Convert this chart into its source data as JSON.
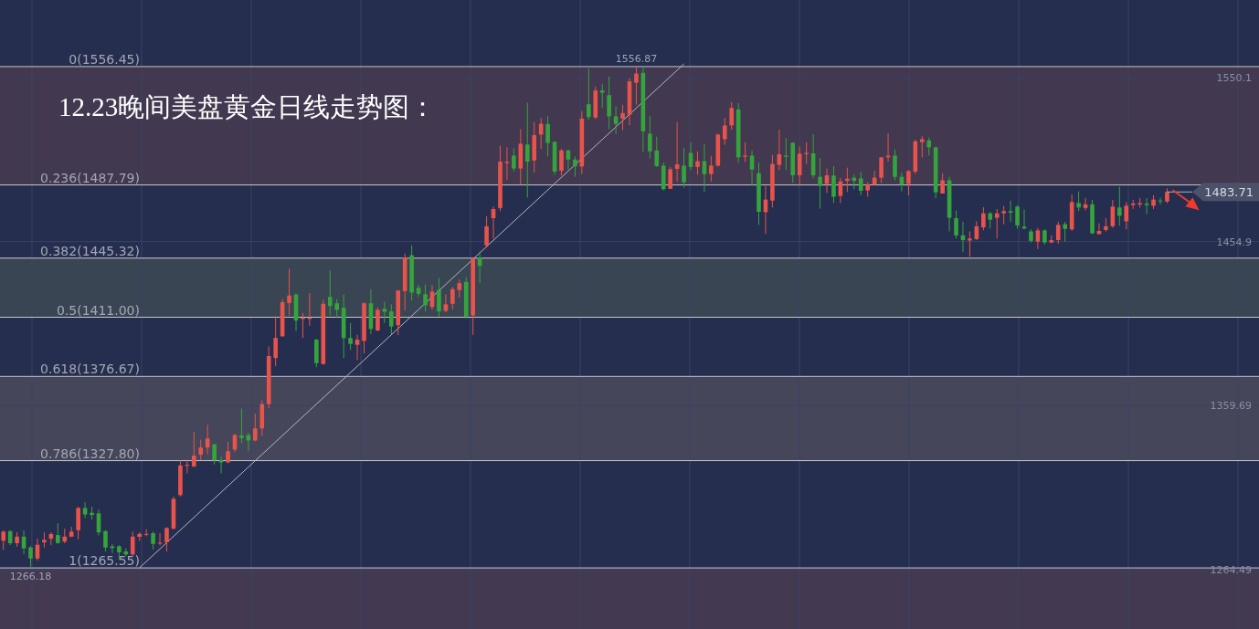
{
  "chart_data": {
    "type": "candlestick",
    "title": "12.23晚间美盘黄金日线走势图：",
    "categories": [
      null,
      null,
      null,
      null,
      null,
      null,
      null,
      null,
      null,
      null,
      null,
      null,
      null,
      null,
      null,
      null,
      null,
      null,
      null,
      null,
      null,
      null,
      null,
      null,
      null,
      null,
      null,
      null,
      null,
      null,
      null,
      null,
      null,
      null,
      null,
      null,
      null,
      null,
      null,
      null,
      null,
      null,
      null,
      null,
      null,
      null,
      null,
      null,
      null,
      null,
      null,
      null,
      null,
      null,
      null,
      null,
      null,
      null,
      null,
      null,
      null,
      null,
      null,
      null,
      null,
      null,
      null,
      null,
      null,
      null,
      null,
      null,
      null,
      null,
      null,
      null,
      null,
      null,
      null,
      null,
      null,
      null,
      null,
      null,
      null,
      null,
      null,
      null,
      null,
      null,
      null,
      null,
      null,
      null,
      null,
      null,
      null,
      null,
      null,
      null,
      null,
      null,
      null,
      null,
      null,
      null,
      null,
      null,
      null,
      null,
      null,
      null,
      null,
      null,
      null,
      null,
      null,
      null,
      null,
      null,
      null,
      null,
      null,
      null,
      null,
      null,
      null,
      null,
      null,
      null,
      null,
      null,
      null,
      null,
      null,
      null,
      null,
      null,
      null,
      null,
      null,
      null,
      null,
      null,
      null,
      null,
      null,
      null,
      null,
      null,
      null,
      null,
      null,
      null,
      null,
      null,
      null,
      null,
      null,
      null,
      null,
      null,
      null,
      null,
      null,
      null,
      null,
      null,
      null,
      null,
      null,
      null,
      null,
      null,
      null,
      null,
      null,
      null,
      null,
      null,
      null,
      null,
      null,
      null,
      null
    ],
    "ohlc": [
      [
        1281.3,
        1287.4,
        1276.0,
        1286.6
      ],
      [
        1286.9,
        1287.4,
        1278.8,
        1279.9
      ],
      [
        1279.9,
        1286.2,
        1277.8,
        1283.7
      ],
      [
        1283.7,
        1287.3,
        1273.5,
        1276.9
      ],
      [
        1277.4,
        1278.3,
        1266.18,
        1271.0
      ],
      [
        1271.0,
        1282.5,
        1269.8,
        1279.0
      ],
      [
        1280.4,
        1286.2,
        1277.4,
        1281.8
      ],
      [
        1282.5,
        1286.2,
        1278.8,
        1285.2
      ],
      [
        1284.6,
        1291.5,
        1279.5,
        1280.0
      ],
      [
        1280.8,
        1288.3,
        1279.9,
        1283.7
      ],
      [
        1283.7,
        1289.4,
        1283.4,
        1286.6
      ],
      [
        1287.4,
        1301.0,
        1282.2,
        1300.3
      ],
      [
        1300.3,
        1303.7,
        1294.5,
        1296.6
      ],
      [
        1297.5,
        1301.0,
        1293.6,
        1296.3
      ],
      [
        1297.2,
        1299.3,
        1284.5,
        1286.2
      ],
      [
        1286.9,
        1287.4,
        1275.1,
        1277.4
      ],
      [
        1278.1,
        1279.5,
        1274.2,
        1277.1
      ],
      [
        1278.1,
        1278.7,
        1270.2,
        1274.6
      ],
      [
        1275.1,
        1276.9,
        1272.5,
        1273.4
      ],
      [
        1273.4,
        1286.6,
        1272.5,
        1283.7
      ],
      [
        1283.6,
        1286.2,
        1281.3,
        1285.3
      ],
      [
        1285.0,
        1288.0,
        1284.0,
        1285.3
      ],
      [
        1285.7,
        1286.6,
        1276.3,
        1279.5
      ],
      [
        1279.7,
        1285.7,
        1278.7,
        1280.2
      ],
      [
        1280.4,
        1289.2,
        1275.1,
        1288.7
      ],
      [
        1288.3,
        1306.9,
        1288.0,
        1305.6
      ],
      [
        1307.8,
        1328.0,
        1306.9,
        1325.0
      ],
      [
        1324.8,
        1328.5,
        1320.4,
        1325.4
      ],
      [
        1324.5,
        1344.4,
        1323.9,
        1330.7
      ],
      [
        1331.2,
        1340.0,
        1328.0,
        1335.4
      ],
      [
        1335.4,
        1348.6,
        1331.5,
        1340.7
      ],
      [
        1337.2,
        1337.7,
        1325.7,
        1328.0
      ],
      [
        1328.0,
        1330.1,
        1320.4,
        1326.8
      ],
      [
        1326.8,
        1338.6,
        1326.3,
        1333.3
      ],
      [
        1334.2,
        1343.3,
        1332.8,
        1342.7
      ],
      [
        1342.4,
        1358.0,
        1338.1,
        1340.9
      ],
      [
        1342.7,
        1343.9,
        1333.3,
        1339.5
      ],
      [
        1339.5,
        1355.0,
        1339.0,
        1346.5
      ],
      [
        1346.5,
        1362.8,
        1342.1,
        1360.6
      ],
      [
        1360.6,
        1394.1,
        1358.3,
        1388.5
      ],
      [
        1387.4,
        1411.7,
        1382.6,
        1399.0
      ],
      [
        1399.9,
        1421.5,
        1399.9,
        1419.7
      ],
      [
        1419.3,
        1439.1,
        1412.1,
        1423.6
      ],
      [
        1424.1,
        1425.0,
        1403.0,
        1409.1
      ],
      [
        1410.0,
        1413.5,
        1399.0,
        1410.7
      ],
      [
        1410.0,
        1425.0,
        1406.1,
        1410.7
      ],
      [
        1398.0,
        1398.5,
        1382.1,
        1384.4
      ],
      [
        1383.9,
        1421.1,
        1383.5,
        1418.8
      ],
      [
        1422.8,
        1438.2,
        1412.1,
        1417.5
      ],
      [
        1419.1,
        1421.5,
        1410.9,
        1415.3
      ],
      [
        1416.5,
        1424.1,
        1387.4,
        1398.9
      ],
      [
        1399.0,
        1407.7,
        1392.0,
        1395.5
      ],
      [
        1395.0,
        1400.8,
        1386.2,
        1398.0
      ],
      [
        1397.3,
        1419.7,
        1390.0,
        1419.1
      ],
      [
        1419.1,
        1427.3,
        1401.2,
        1404.2
      ],
      [
        1403.3,
        1416.7,
        1403.0,
        1415.3
      ],
      [
        1416.0,
        1420.0,
        1407.7,
        1414.2
      ],
      [
        1414.4,
        1418.5,
        1401.2,
        1405.6
      ],
      [
        1406.4,
        1426.8,
        1400.6,
        1426.5
      ],
      [
        1426.2,
        1447.9,
        1414.9,
        1445.6
      ],
      [
        1447.0,
        1452.8,
        1420.6,
        1425.3
      ],
      [
        1428.1,
        1429.9,
        1422.8,
        1424.6
      ],
      [
        1424.4,
        1429.9,
        1414.4,
        1417.9
      ],
      [
        1417.0,
        1429.7,
        1415.3,
        1425.9
      ],
      [
        1426.8,
        1433.8,
        1411.4,
        1414.4
      ],
      [
        1414.7,
        1424.4,
        1413.8,
        1418.5
      ],
      [
        1418.8,
        1428.5,
        1415.6,
        1427.3
      ],
      [
        1426.8,
        1432.9,
        1422.3,
        1430.8
      ],
      [
        1431.5,
        1434.3,
        1410.4,
        1411.4
      ],
      [
        1412.1,
        1445.6,
        1400.8,
        1445.3
      ],
      [
        1445.6,
        1449.1,
        1430.8,
        1440.8
      ],
      [
        1452.7,
        1469.6,
        1451.4,
        1463.8
      ],
      [
        1468.5,
        1475.2,
        1456.7,
        1473.8
      ],
      [
        1474.4,
        1510.5,
        1472.6,
        1501.3
      ],
      [
        1500.4,
        1509.6,
        1490.7,
        1501.1
      ],
      [
        1504.8,
        1509.0,
        1495.5,
        1497.3
      ],
      [
        1497.3,
        1520.2,
        1487.9,
        1511.7
      ],
      [
        1511.2,
        1535.5,
        1480.5,
        1501.3
      ],
      [
        1502.0,
        1524.2,
        1495.0,
        1516.7
      ],
      [
        1517.0,
        1526.7,
        1508.7,
        1523.3
      ],
      [
        1523.2,
        1527.8,
        1504.3,
        1512.2
      ],
      [
        1512.8,
        1513.1,
        1493.7,
        1495.5
      ],
      [
        1496.0,
        1508.7,
        1493.2,
        1507.8
      ],
      [
        1507.8,
        1508.4,
        1496.7,
        1502.5
      ],
      [
        1502.5,
        1504.3,
        1492.5,
        1498.5
      ],
      [
        1498.5,
        1530.7,
        1494.1,
        1526.3
      ],
      [
        1534.6,
        1555.4,
        1525.4,
        1527.2
      ],
      [
        1526.9,
        1544.9,
        1526.0,
        1542.6
      ],
      [
        1542.6,
        1546.6,
        1532.5,
        1541.3
      ],
      [
        1539.9,
        1550.7,
        1520.2,
        1527.6
      ],
      [
        1527.6,
        1533.4,
        1517.2,
        1523.2
      ],
      [
        1526.3,
        1534.3,
        1519.6,
        1529.5
      ],
      [
        1528.5,
        1549.6,
        1522.5,
        1547.9
      ],
      [
        1547.1,
        1556.87,
        1534.3,
        1552.4
      ],
      [
        1552.8,
        1556.5,
        1506.9,
        1518.9
      ],
      [
        1517.5,
        1527.8,
        1503.1,
        1507.3
      ],
      [
        1507.8,
        1515.8,
        1498.2,
        1498.7
      ],
      [
        1499.0,
        1500.8,
        1484.6,
        1485.3
      ],
      [
        1485.5,
        1498.2,
        1485.5,
        1496.9
      ],
      [
        1497.1,
        1524.2,
        1489.7,
        1499.7
      ],
      [
        1499.0,
        1509.3,
        1486.2,
        1489.3
      ],
      [
        1506.4,
        1512.6,
        1496.4,
        1498.2
      ],
      [
        1498.2,
        1507.3,
        1493.7,
        1501.6
      ],
      [
        1501.6,
        1511.4,
        1483.7,
        1494.1
      ],
      [
        1494.1,
        1504.7,
        1489.7,
        1499.0
      ],
      [
        1499.0,
        1517.5,
        1498.5,
        1517.0
      ],
      [
        1514.3,
        1526.7,
        1511.0,
        1522.3
      ],
      [
        1522.3,
        1535.9,
        1519.6,
        1532.5
      ],
      [
        1531.6,
        1535.2,
        1500.4,
        1503.8
      ],
      [
        1504.1,
        1512.6,
        1501.1,
        1504.8
      ],
      [
        1504.8,
        1507.8,
        1487.6,
        1496.7
      ],
      [
        1494.6,
        1500.8,
        1464.6,
        1472.2
      ],
      [
        1472.0,
        1487.2,
        1459.3,
        1479.3
      ],
      [
        1478.7,
        1505.2,
        1474.7,
        1499.9
      ],
      [
        1499.4,
        1519.8,
        1496.4,
        1505.6
      ],
      [
        1504.8,
        1514.9,
        1496.4,
        1504.1
      ],
      [
        1512.2,
        1512.6,
        1489.0,
        1493.4
      ],
      [
        1493.4,
        1510.1,
        1487.2,
        1505.9
      ],
      [
        1505.7,
        1512.6,
        1499.9,
        1506.4
      ],
      [
        1506.1,
        1517.2,
        1491.6,
        1493.4
      ],
      [
        1492.5,
        1503.4,
        1474.0,
        1487.2
      ],
      [
        1488.4,
        1497.3,
        1483.1,
        1493.4
      ],
      [
        1493.2,
        1498.7,
        1477.3,
        1480.9
      ],
      [
        1481.4,
        1491.8,
        1477.3,
        1489.8
      ],
      [
        1490.2,
        1497.8,
        1483.7,
        1491.4
      ],
      [
        1492.0,
        1494.1,
        1485.3,
        1490.2
      ],
      [
        1491.6,
        1495.5,
        1481.9,
        1484.4
      ],
      [
        1484.6,
        1489.3,
        1480.9,
        1487.9
      ],
      [
        1487.9,
        1496.0,
        1487.6,
        1492.0
      ],
      [
        1492.0,
        1504.0,
        1488.8,
        1503.8
      ],
      [
        1503.8,
        1517.9,
        1501.3,
        1504.8
      ],
      [
        1504.8,
        1508.4,
        1490.5,
        1492.5
      ],
      [
        1492.5,
        1495.0,
        1484.0,
        1487.9
      ],
      [
        1488.4,
        1496.4,
        1481.8,
        1495.8
      ],
      [
        1495.5,
        1514.0,
        1494.2,
        1513.1
      ],
      [
        1512.6,
        1516.1,
        1503.8,
        1514.3
      ],
      [
        1513.6,
        1515.2,
        1504.8,
        1509.6
      ],
      [
        1509.6,
        1510.0,
        1480.0,
        1483.5
      ],
      [
        1482.8,
        1494.6,
        1482.8,
        1490.5
      ],
      [
        1490.5,
        1492.5,
        1460.8,
        1468.7
      ],
      [
        1468.5,
        1472.9,
        1456.7,
        1458.5
      ],
      [
        1458.5,
        1466.4,
        1448.8,
        1455.8
      ],
      [
        1455.5,
        1460.8,
        1446.1,
        1456.7
      ],
      [
        1456.4,
        1466.7,
        1455.8,
        1463.8
      ],
      [
        1463.2,
        1474.9,
        1461.4,
        1471.3
      ],
      [
        1471.3,
        1472.0,
        1462.5,
        1467.6
      ],
      [
        1468.7,
        1473.8,
        1456.7,
        1471.3
      ],
      [
        1471.3,
        1475.6,
        1465.0,
        1472.6
      ],
      [
        1472.6,
        1478.7,
        1466.4,
        1471.7
      ],
      [
        1475.2,
        1476.1,
        1462.5,
        1464.3
      ],
      [
        1463.6,
        1473.5,
        1462.0,
        1462.5
      ],
      [
        1460.8,
        1462.0,
        1454.4,
        1455.3
      ],
      [
        1454.9,
        1462.9,
        1450.6,
        1461.4
      ],
      [
        1461.4,
        1462.0,
        1453.2,
        1454.4
      ],
      [
        1454.4,
        1458.5,
        1454.0,
        1455.8
      ],
      [
        1455.8,
        1466.4,
        1453.7,
        1464.6
      ],
      [
        1465.0,
        1466.4,
        1454.9,
        1462.3
      ],
      [
        1462.0,
        1482.3,
        1461.1,
        1477.8
      ],
      [
        1477.3,
        1484.0,
        1472.6,
        1474.7
      ],
      [
        1474.4,
        1480.2,
        1473.1,
        1476.5
      ],
      [
        1476.5,
        1479.1,
        1459.3,
        1459.7
      ],
      [
        1459.3,
        1465.5,
        1459.0,
        1461.1
      ],
      [
        1461.7,
        1468.5,
        1460.8,
        1463.8
      ],
      [
        1463.8,
        1479.1,
        1462.9,
        1475.2
      ],
      [
        1474.7,
        1486.7,
        1464.1,
        1469.9
      ],
      [
        1466.7,
        1477.8,
        1462.0,
        1475.7
      ],
      [
        1476.1,
        1479.1,
        1473.8,
        1477.0
      ],
      [
        1476.5,
        1480.2,
        1474.7,
        1477.3
      ],
      [
        1477.0,
        1480.2,
        1470.8,
        1476.1
      ],
      [
        1475.7,
        1481.8,
        1473.8,
        1479.3
      ],
      [
        1478.7,
        1480.5,
        1476.5,
        1478.2
      ],
      [
        1478.2,
        1485.8,
        1477.3,
        1483.71
      ],
      null,
      null,
      null,
      null,
      null,
      null,
      null,
      null,
      null,
      null,
      null,
      null,
      null
    ],
    "colors": [
      "#e8534b",
      "#35a43c",
      "#e8534b",
      "#35a43c",
      "#35a43c",
      "#e8534b",
      "#e8534b",
      "#e8534b",
      "#35a43c",
      "#e8534b",
      "#e8534b",
      "#e8534b",
      "#35a43c",
      "#35a43c",
      "#35a43c",
      "#35a43c",
      "#35a43c",
      "#35a43c",
      "#35a43c",
      "#e8534b",
      "#e8534b",
      "#e8534b",
      "#35a43c",
      "#e8534b",
      "#e8534b",
      "#e8534b",
      "#e8534b",
      "#e8534b",
      "#e8534b",
      "#e8534b",
      "#e8534b",
      "#35a43c",
      "#35a43c",
      "#e8534b",
      "#e8534b",
      "#35a43c",
      "#35a43c",
      "#e8534b",
      "#e8534b",
      "#e8534b",
      "#e8534b",
      "#e8534b",
      "#e8534b",
      "#35a43c",
      "#e8534b",
      "#e8534b",
      "#35a43c",
      "#e8534b",
      "#35a43c",
      "#35a43c",
      "#35a43c",
      "#35a43c",
      "#e8534b",
      "#e8534b",
      "#35a43c",
      "#e8534b",
      "#35a43c",
      "#35a43c",
      "#e8534b",
      "#e8534b",
      "#35a43c",
      "#35a43c",
      "#35a43c",
      "#e8534b",
      "#35a43c",
      "#e8534b",
      "#e8534b",
      "#e8534b",
      "#35a43c",
      "#e8534b",
      "#35a43c",
      "#e8534b",
      "#e8534b",
      "#e8534b",
      "#e8534b",
      "#35a43c",
      "#e8534b",
      "#35a43c",
      "#e8534b",
      "#e8534b",
      "#35a43c",
      "#35a43c",
      "#e8534b",
      "#35a43c",
      "#35a43c",
      "#e8534b",
      "#35a43c",
      "#e8534b",
      "#35a43c",
      "#35a43c",
      "#35a43c",
      "#e8534b",
      "#e8534b",
      "#e8534b",
      "#35a43c",
      "#35a43c",
      "#35a43c",
      "#35a43c",
      "#e8534b",
      "#e8534b",
      "#35a43c",
      "#35a43c",
      "#e8534b",
      "#35a43c",
      "#e8534b",
      "#e8534b",
      "#e8534b",
      "#e8534b",
      "#35a43c",
      "#e8534b",
      "#35a43c",
      "#35a43c",
      "#e8534b",
      "#e8534b",
      "#e8534b",
      "#35a43c",
      "#35a43c",
      "#e8534b",
      "#e8534b",
      "#35a43c",
      "#35a43c",
      "#e8534b",
      "#35a43c",
      "#e8534b",
      "#e8534b",
      "#35a43c",
      "#35a43c",
      "#e8534b",
      "#e8534b",
      "#e8534b",
      "#e8534b",
      "#35a43c",
      "#35a43c",
      "#e8534b",
      "#e8534b",
      "#e8534b",
      "#35a43c",
      "#35a43c",
      "#e8534b",
      "#35a43c",
      "#35a43c",
      "#35a43c",
      "#e8534b",
      "#e8534b",
      "#e8534b",
      "#35a43c",
      "#e8534b",
      "#e8534b",
      "#35a43c",
      "#35a43c",
      "#35a43c",
      "#35a43c",
      "#e8534b",
      "#35a43c",
      "#e8534b",
      "#e8534b",
      "#35a43c",
      "#e8534b",
      "#35a43c",
      "#e8534b",
      "#35a43c",
      "#e8534b",
      "#e8534b",
      "#e8534b",
      "#35a43c",
      "#e8534b",
      "#e8534b",
      "#e8534b",
      "#35a43c",
      "#e8534b",
      "#35a43c",
      "#e8534b",
      null,
      null,
      null,
      null,
      null,
      null,
      null,
      null,
      null,
      null,
      null,
      null,
      null
    ],
    "ylim": [
      1230.1,
      1595.1
    ],
    "yticks": [
      1550.1,
      1454.9,
      1359.69,
      1264.49
    ],
    "tick_labels": "y",
    "grid": true,
    "series": [
      {
        "type": "line",
        "values": [
          null,
          null,
          null,
          null,
          null,
          null,
          null,
          null,
          null,
          null,
          null,
          null,
          null,
          null,
          null,
          null,
          null,
          null,
          null,
          null,
          1265.6,
          null,
          null,
          null,
          null,
          null,
          null,
          null,
          null,
          null,
          null,
          null,
          null,
          null,
          null,
          null,
          null,
          null,
          null,
          null,
          null,
          null,
          null,
          null,
          null,
          null,
          null,
          null,
          null,
          null,
          null,
          null,
          null,
          null,
          null,
          null,
          null,
          null,
          null,
          null,
          null,
          null,
          null,
          null,
          null,
          null,
          null,
          null,
          null,
          null,
          null,
          null,
          null,
          null,
          null,
          null,
          null,
          null,
          null,
          null,
          null,
          null,
          null,
          null,
          null,
          null,
          null,
          null,
          null,
          null,
          null,
          null,
          null,
          null,
          null,
          null,
          null,
          null,
          null,
          null,
          1558.0,
          null,
          null,
          null,
          null,
          null,
          null,
          null,
          null,
          null,
          null,
          null,
          null,
          null,
          null,
          null,
          null,
          null,
          null,
          null,
          null,
          null,
          null,
          null,
          null,
          null,
          null,
          null,
          null,
          null,
          null,
          null,
          null,
          null,
          null,
          null,
          null,
          null,
          null,
          null,
          null,
          null,
          null,
          null,
          null,
          null,
          null,
          null,
          null,
          null,
          null,
          null,
          null,
          null,
          null,
          null,
          null,
          null,
          null,
          null,
          null,
          null,
          null,
          null,
          null,
          null,
          null,
          null,
          null,
          null,
          null,
          null,
          null,
          null,
          null,
          null,
          null,
          null,
          null,
          null,
          null,
          null,
          null,
          null,
          null
        ],
        "color": "#b4b6c2"
      }
    ],
    "ref_lines": [
      {
        "axis": "y",
        "value": 1556.45,
        "label": "0(1556.45)",
        "color": "#c8c8c8"
      },
      {
        "axis": "y",
        "value": 1487.79,
        "label": "0.236(1487.79)",
        "color": "#c8c8c8"
      },
      {
        "axis": "y",
        "value": 1445.32,
        "label": "0.382(1445.32)",
        "color": "#c8c8c8"
      },
      {
        "axis": "y",
        "value": 1411.0,
        "label": "0.5(1411.00)",
        "color": "#c8c8c8"
      },
      {
        "axis": "y",
        "value": 1376.67,
        "label": "0.618(1376.67)",
        "color": "#c8c8c8"
      },
      {
        "axis": "y",
        "value": 1327.8,
        "label": "0.786(1327.80)",
        "color": "#c8c8c8"
      },
      {
        "axis": "y",
        "value": 1265.55,
        "label": "1(1265.55)",
        "color": "#c8c8c8"
      }
    ],
    "bands": [
      {
        "axis": "y",
        "from": 1487.79,
        "to": 1556.45,
        "color": "#42384f"
      },
      {
        "axis": "y",
        "from": 1411.0,
        "to": 1445.32,
        "color": "#3a4554"
      },
      {
        "axis": "y",
        "from": 1327.8,
        "to": 1376.67,
        "color": "#45465a"
      },
      {
        "axis": "y",
        "from": 1230.1,
        "to": 1265.55,
        "color": "#433a52"
      }
    ],
    "annotations": [
      {
        "text": "1556.87",
        "y": 1556.87
      },
      {
        "text": "1266.18",
        "y": 1266.18
      },
      "1483.71"
    ]
  }
}
